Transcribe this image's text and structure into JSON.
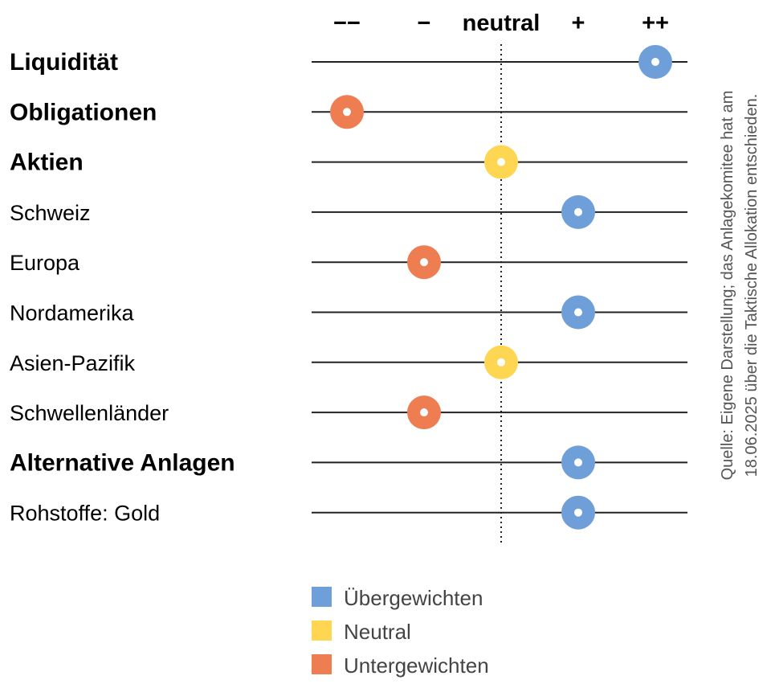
{
  "chart_data": {
    "type": "scatter",
    "scale": [
      "−−",
      "−",
      "neutral",
      "+",
      "++"
    ],
    "rows": [
      {
        "label": "Liquidität",
        "bold": true,
        "value": 2,
        "rating": "overweight"
      },
      {
        "label": "Obligationen",
        "bold": true,
        "value": -2,
        "rating": "underweight"
      },
      {
        "label": "Aktien",
        "bold": true,
        "value": 0,
        "rating": "neutral"
      },
      {
        "label": "Schweiz",
        "bold": false,
        "value": 1,
        "rating": "overweight"
      },
      {
        "label": "Europa",
        "bold": false,
        "value": -1,
        "rating": "underweight"
      },
      {
        "label": "Nordamerika",
        "bold": false,
        "value": 1,
        "rating": "overweight"
      },
      {
        "label": "Asien-Pazifik",
        "bold": false,
        "value": 0,
        "rating": "neutral"
      },
      {
        "label": "Schwellenländer",
        "bold": false,
        "value": -1,
        "rating": "underweight"
      },
      {
        "label": "Alternative Anlagen",
        "bold": true,
        "value": 1,
        "rating": "overweight"
      },
      {
        "label": "Rohstoffe: Gold",
        "bold": false,
        "value": 1,
        "rating": "overweight"
      }
    ],
    "legend": [
      {
        "key": "overweight",
        "label": "Übergewichten",
        "color": "#6f9fd8"
      },
      {
        "key": "neutral",
        "label": "Neutral",
        "color": "#fed651"
      },
      {
        "key": "underweight",
        "label": "Untergewichten",
        "color": "#ee7d52"
      }
    ],
    "xlim": [
      -2,
      2
    ],
    "source_lines": [
      "Quelle: Eigene Darstellung; das Anlagekomitee hat am",
      "18.06.2025 über die Taktische Allokation entschieden."
    ]
  }
}
